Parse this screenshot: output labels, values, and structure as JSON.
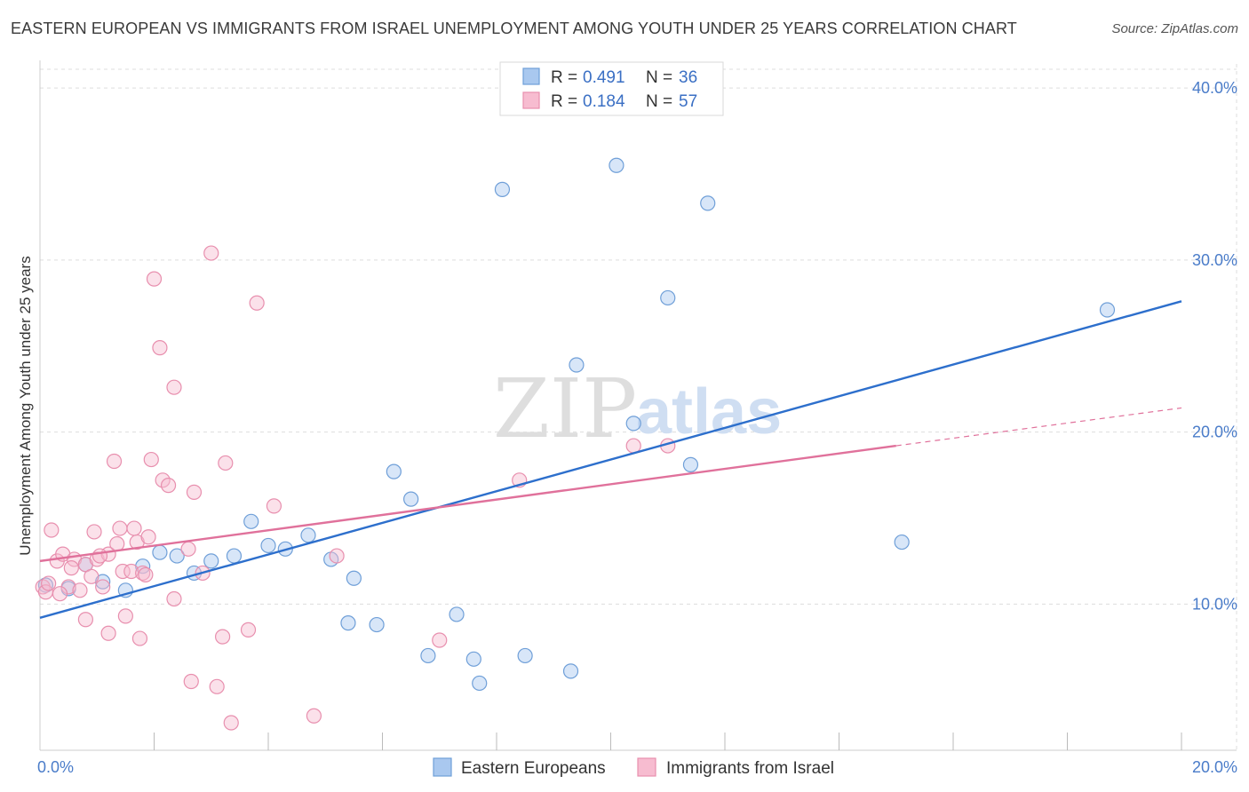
{
  "title": "EASTERN EUROPEAN VS IMMIGRANTS FROM ISRAEL UNEMPLOYMENT AMONG YOUTH UNDER 25 YEARS CORRELATION CHART",
  "source": "Source: ZipAtlas.com",
  "watermark": {
    "zip": "ZIP",
    "atlas": "atlas"
  },
  "colors": {
    "blue_fill": "#a9c8ef",
    "blue_stroke": "#6f9fd8",
    "blue_line": "#2d6fcc",
    "pink_fill": "#f7bcd0",
    "pink_stroke": "#e88fae",
    "pink_line": "#e0719b",
    "tick": "#4a7cc9",
    "grid": "#dddddd"
  },
  "legend_top": [
    {
      "r_label": "R = ",
      "r_value": "0.491",
      "n_label": "N = ",
      "n_value": "36",
      "series": "blue"
    },
    {
      "r_label": "R = ",
      "r_value": "0.184",
      "n_label": "N = ",
      "n_value": "57",
      "series": "pink"
    }
  ],
  "chart_data": {
    "type": "scatter",
    "title": "EASTERN EUROPEAN VS IMMIGRANTS FROM ISRAEL UNEMPLOYMENT AMONG YOUTH UNDER 25 YEARS CORRELATION CHART",
    "xlabel": "",
    "ylabel": "Unemployment Among Youth under 25 years",
    "xlim": [
      0,
      20
    ],
    "ylim": [
      1.5,
      41.5
    ],
    "x_tick_labels": [
      {
        "value": 0,
        "label": "0.0%"
      },
      {
        "value": 20,
        "label": "20.0%"
      }
    ],
    "y_tick_labels": [
      {
        "value": 10,
        "label": "10.0%"
      },
      {
        "value": 20,
        "label": "20.0%"
      },
      {
        "value": 30,
        "label": "30.0%"
      },
      {
        "value": 40,
        "label": "40.0%"
      }
    ],
    "grid": true,
    "legend_position": "top-center",
    "series": [
      {
        "name": "Eastern Europeans",
        "color": "#a9c8ef",
        "trend": {
          "x": [
            0,
            20
          ],
          "y": [
            9.2,
            27.6
          ]
        },
        "points": [
          [
            0.1,
            11.1
          ],
          [
            0.5,
            10.9
          ],
          [
            0.8,
            12.3
          ],
          [
            1.1,
            11.3
          ],
          [
            1.5,
            10.8
          ],
          [
            1.8,
            12.2
          ],
          [
            2.1,
            13.0
          ],
          [
            2.4,
            12.8
          ],
          [
            2.7,
            11.8
          ],
          [
            3.0,
            12.5
          ],
          [
            3.4,
            12.8
          ],
          [
            3.7,
            14.8
          ],
          [
            4.0,
            13.4
          ],
          [
            4.3,
            13.2
          ],
          [
            4.7,
            14.0
          ],
          [
            5.1,
            12.6
          ],
          [
            5.4,
            8.9
          ],
          [
            5.5,
            11.5
          ],
          [
            5.9,
            8.8
          ],
          [
            6.2,
            17.7
          ],
          [
            6.5,
            16.1
          ],
          [
            6.8,
            7.0
          ],
          [
            7.3,
            9.4
          ],
          [
            7.6,
            6.8
          ],
          [
            7.7,
            5.4
          ],
          [
            8.1,
            34.1
          ],
          [
            8.5,
            7.0
          ],
          [
            9.3,
            6.1
          ],
          [
            9.4,
            23.9
          ],
          [
            10.1,
            35.5
          ],
          [
            10.4,
            20.5
          ],
          [
            11.0,
            27.8
          ],
          [
            11.4,
            18.1
          ],
          [
            11.7,
            33.3
          ],
          [
            15.1,
            13.6
          ],
          [
            18.7,
            27.1
          ]
        ]
      },
      {
        "name": "Immigrants from Israel",
        "color": "#f7bcd0",
        "trend": {
          "x": [
            0,
            15
          ],
          "y": [
            12.5,
            19.2
          ]
        },
        "trend_extension": {
          "x": [
            15,
            20
          ],
          "y": [
            19.2,
            21.4
          ]
        },
        "points": [
          [
            0.05,
            11.0
          ],
          [
            0.1,
            10.7
          ],
          [
            0.2,
            14.3
          ],
          [
            0.3,
            12.5
          ],
          [
            0.4,
            12.9
          ],
          [
            0.5,
            11.0
          ],
          [
            0.6,
            12.6
          ],
          [
            0.7,
            10.8
          ],
          [
            0.8,
            12.3
          ],
          [
            0.8,
            9.1
          ],
          [
            0.9,
            11.6
          ],
          [
            0.95,
            14.2
          ],
          [
            1.0,
            12.6
          ],
          [
            1.1,
            11.0
          ],
          [
            1.2,
            12.9
          ],
          [
            1.2,
            8.3
          ],
          [
            1.3,
            18.3
          ],
          [
            1.35,
            13.5
          ],
          [
            1.4,
            14.4
          ],
          [
            1.45,
            11.9
          ],
          [
            1.5,
            9.3
          ],
          [
            1.6,
            11.9
          ],
          [
            1.65,
            14.4
          ],
          [
            1.7,
            13.6
          ],
          [
            1.75,
            8.0
          ],
          [
            1.8,
            11.8
          ],
          [
            1.85,
            11.7
          ],
          [
            1.9,
            13.9
          ],
          [
            1.95,
            18.4
          ],
          [
            2.0,
            28.9
          ],
          [
            2.1,
            24.9
          ],
          [
            2.15,
            17.2
          ],
          [
            2.25,
            16.9
          ],
          [
            2.35,
            22.6
          ],
          [
            2.35,
            10.3
          ],
          [
            2.6,
            13.2
          ],
          [
            2.65,
            5.5
          ],
          [
            2.7,
            16.5
          ],
          [
            2.85,
            11.8
          ],
          [
            3.0,
            30.4
          ],
          [
            3.1,
            5.2
          ],
          [
            3.2,
            8.1
          ],
          [
            3.25,
            18.2
          ],
          [
            3.35,
            3.1
          ],
          [
            3.65,
            8.5
          ],
          [
            3.8,
            27.5
          ],
          [
            4.1,
            15.7
          ],
          [
            4.8,
            3.5
          ],
          [
            5.2,
            12.8
          ],
          [
            7.0,
            7.9
          ],
          [
            8.4,
            17.2
          ],
          [
            10.4,
            19.2
          ],
          [
            11.0,
            19.2
          ],
          [
            0.15,
            11.2
          ],
          [
            0.35,
            10.6
          ],
          [
            0.55,
            12.1
          ],
          [
            1.05,
            12.8
          ]
        ]
      }
    ]
  },
  "legend_bottom": [
    {
      "label": "Eastern Europeans",
      "series": "blue"
    },
    {
      "label": "Immigrants from Israel",
      "series": "pink"
    }
  ]
}
